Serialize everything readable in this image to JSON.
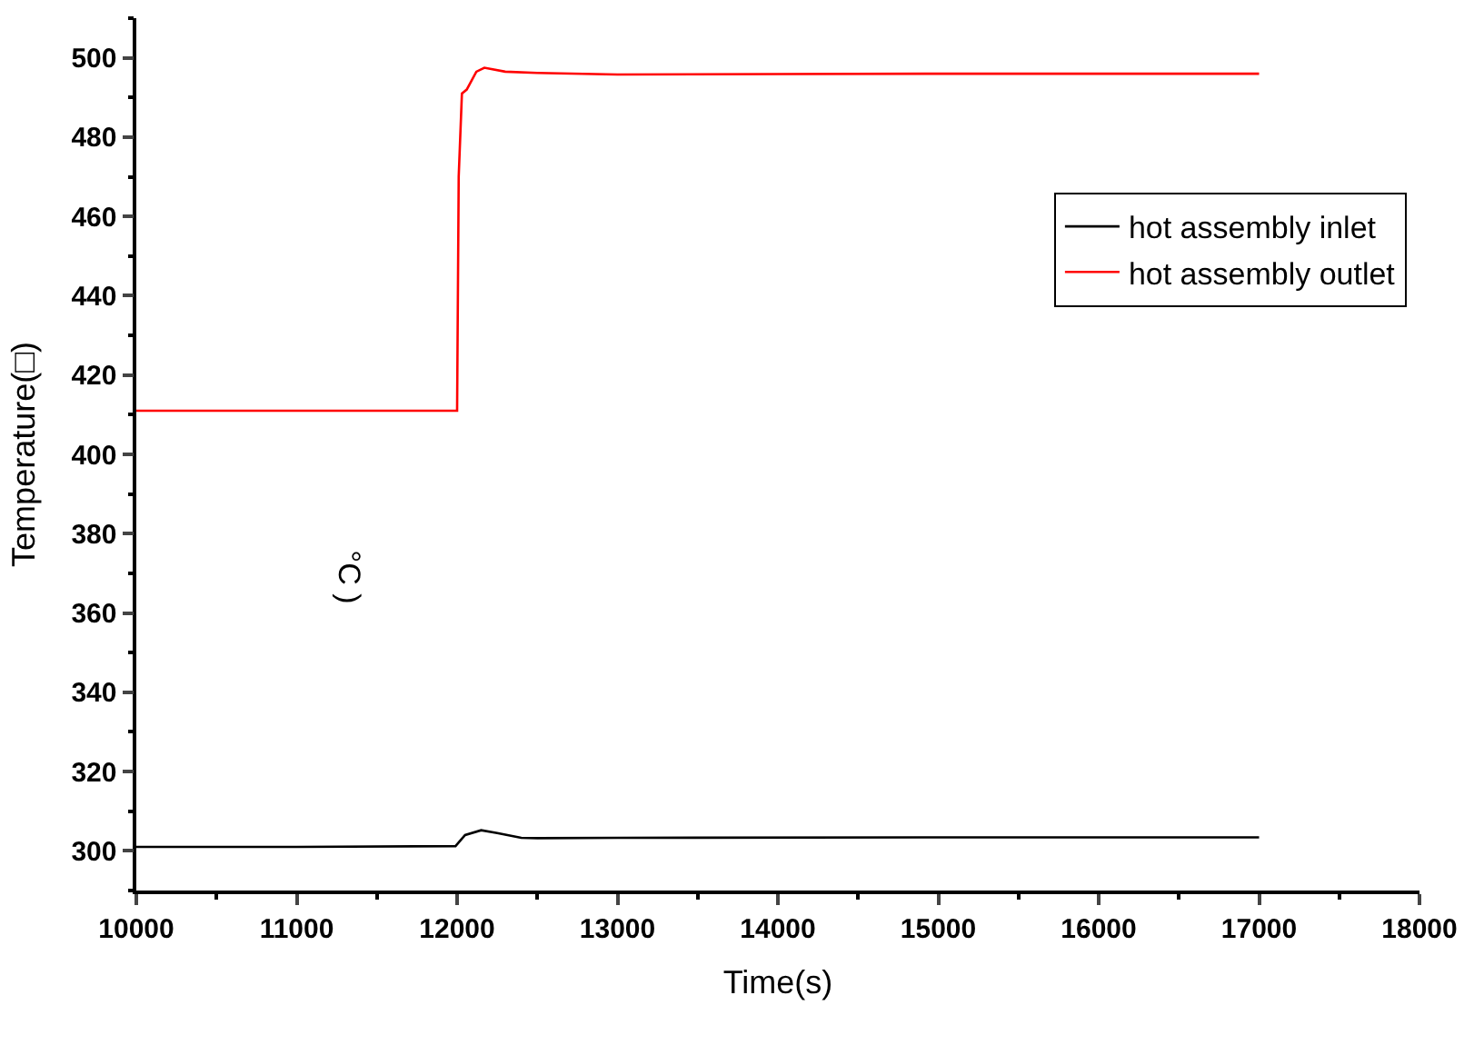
{
  "chart_data": {
    "type": "line",
    "xlabel": "Time(s)",
    "ylabel": "Temperature(□)",
    "annotations": [
      "°C )"
    ],
    "xlim": [
      10000,
      18000
    ],
    "xticks": [
      10000,
      11000,
      12000,
      13000,
      14000,
      15000,
      16000,
      17000,
      18000
    ],
    "ylim": [
      290,
      510
    ],
    "yticks": [
      300,
      320,
      340,
      360,
      380,
      400,
      420,
      440,
      460,
      480,
      500
    ],
    "legend": "top right",
    "line_style": "solid",
    "marker": "none",
    "series": [
      {
        "name": "hot assembly inlet",
        "color": "#000000",
        "x": [
          10000,
          11000,
          11990,
          12050,
          12150,
          12250,
          12400,
          12500,
          13000,
          15000,
          17000
        ],
        "values": [
          301,
          301,
          301.2,
          304,
          305.2,
          304.5,
          303.3,
          303.2,
          303.3,
          303.4,
          303.4
        ]
      },
      {
        "name": "hot assembly outlet",
        "color": "#ff0000",
        "x": [
          10000,
          11000,
          12000,
          12010,
          12030,
          12060,
          12120,
          12170,
          12300,
          12500,
          13000,
          14000,
          15000,
          16000,
          17000
        ],
        "values": [
          411,
          411,
          411,
          470,
          491,
          492,
          496.5,
          497.5,
          496.5,
          496.2,
          495.8,
          495.9,
          496,
          496,
          496
        ]
      }
    ]
  }
}
